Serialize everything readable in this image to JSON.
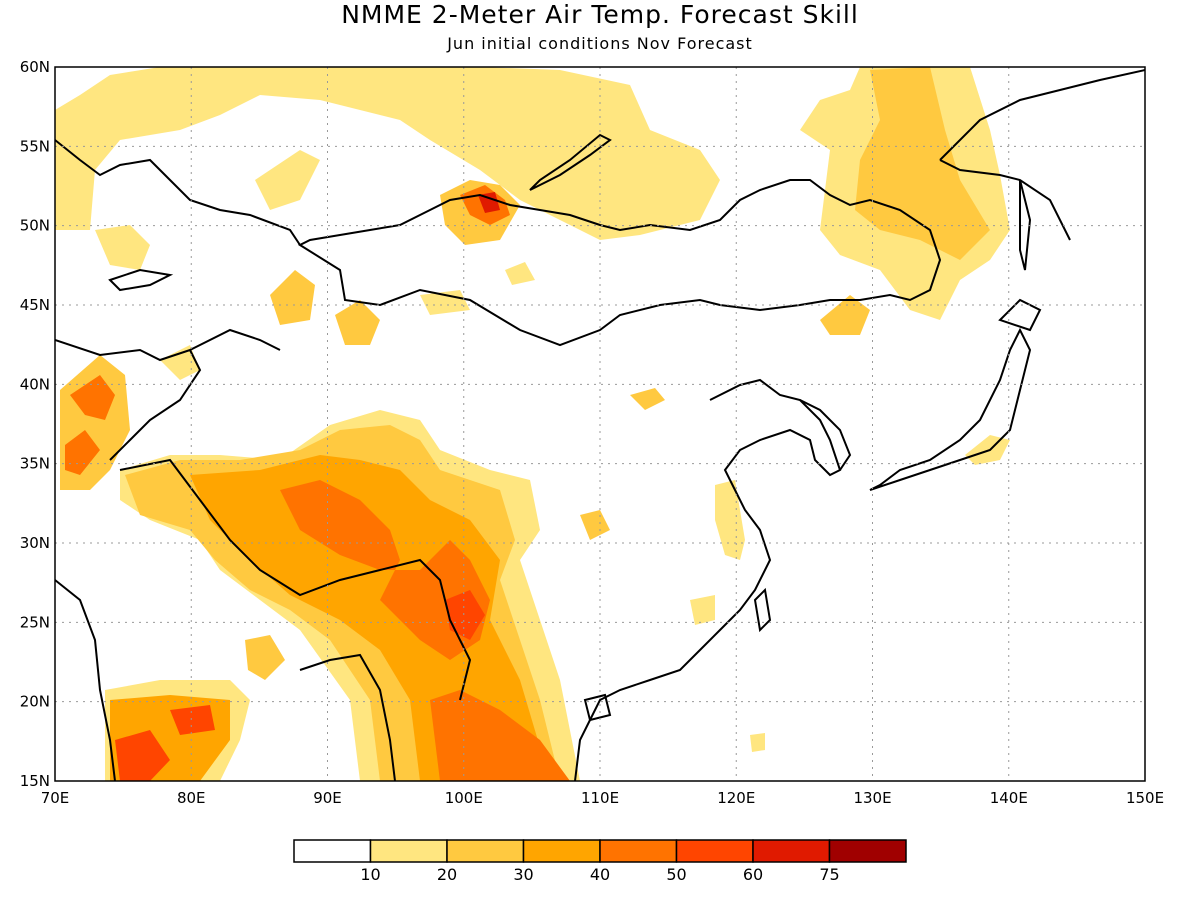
{
  "header": {
    "title": "NMME 2-Meter Air Temp. Forecast Skill",
    "subtitle": "Jun initial conditions  Nov Forecast"
  },
  "map": {
    "lon_range": [
      70,
      150
    ],
    "lat_range": [
      15,
      60
    ],
    "lat_labels": [
      "60N",
      "55N",
      "50N",
      "45N",
      "40N",
      "35N",
      "30N",
      "25N",
      "20N",
      "15N"
    ],
    "lat_values": [
      60,
      55,
      50,
      45,
      40,
      35,
      30,
      25,
      20,
      15
    ],
    "lon_labels": [
      "70E",
      "80E",
      "90E",
      "100E",
      "110E",
      "120E",
      "130E",
      "140E",
      "150E"
    ],
    "lon_values": [
      70,
      80,
      90,
      100,
      110,
      120,
      130,
      140,
      150
    ],
    "grid": "dotted"
  },
  "colorbar": {
    "labels": [
      "10",
      "20",
      "30",
      "40",
      "50",
      "60",
      "75"
    ],
    "colors": [
      "#ffffff",
      "#ffe680",
      "#ffc940",
      "#ffa500",
      "#ff7300",
      "#ff4500",
      "#e01a00",
      "#a00000"
    ]
  }
}
